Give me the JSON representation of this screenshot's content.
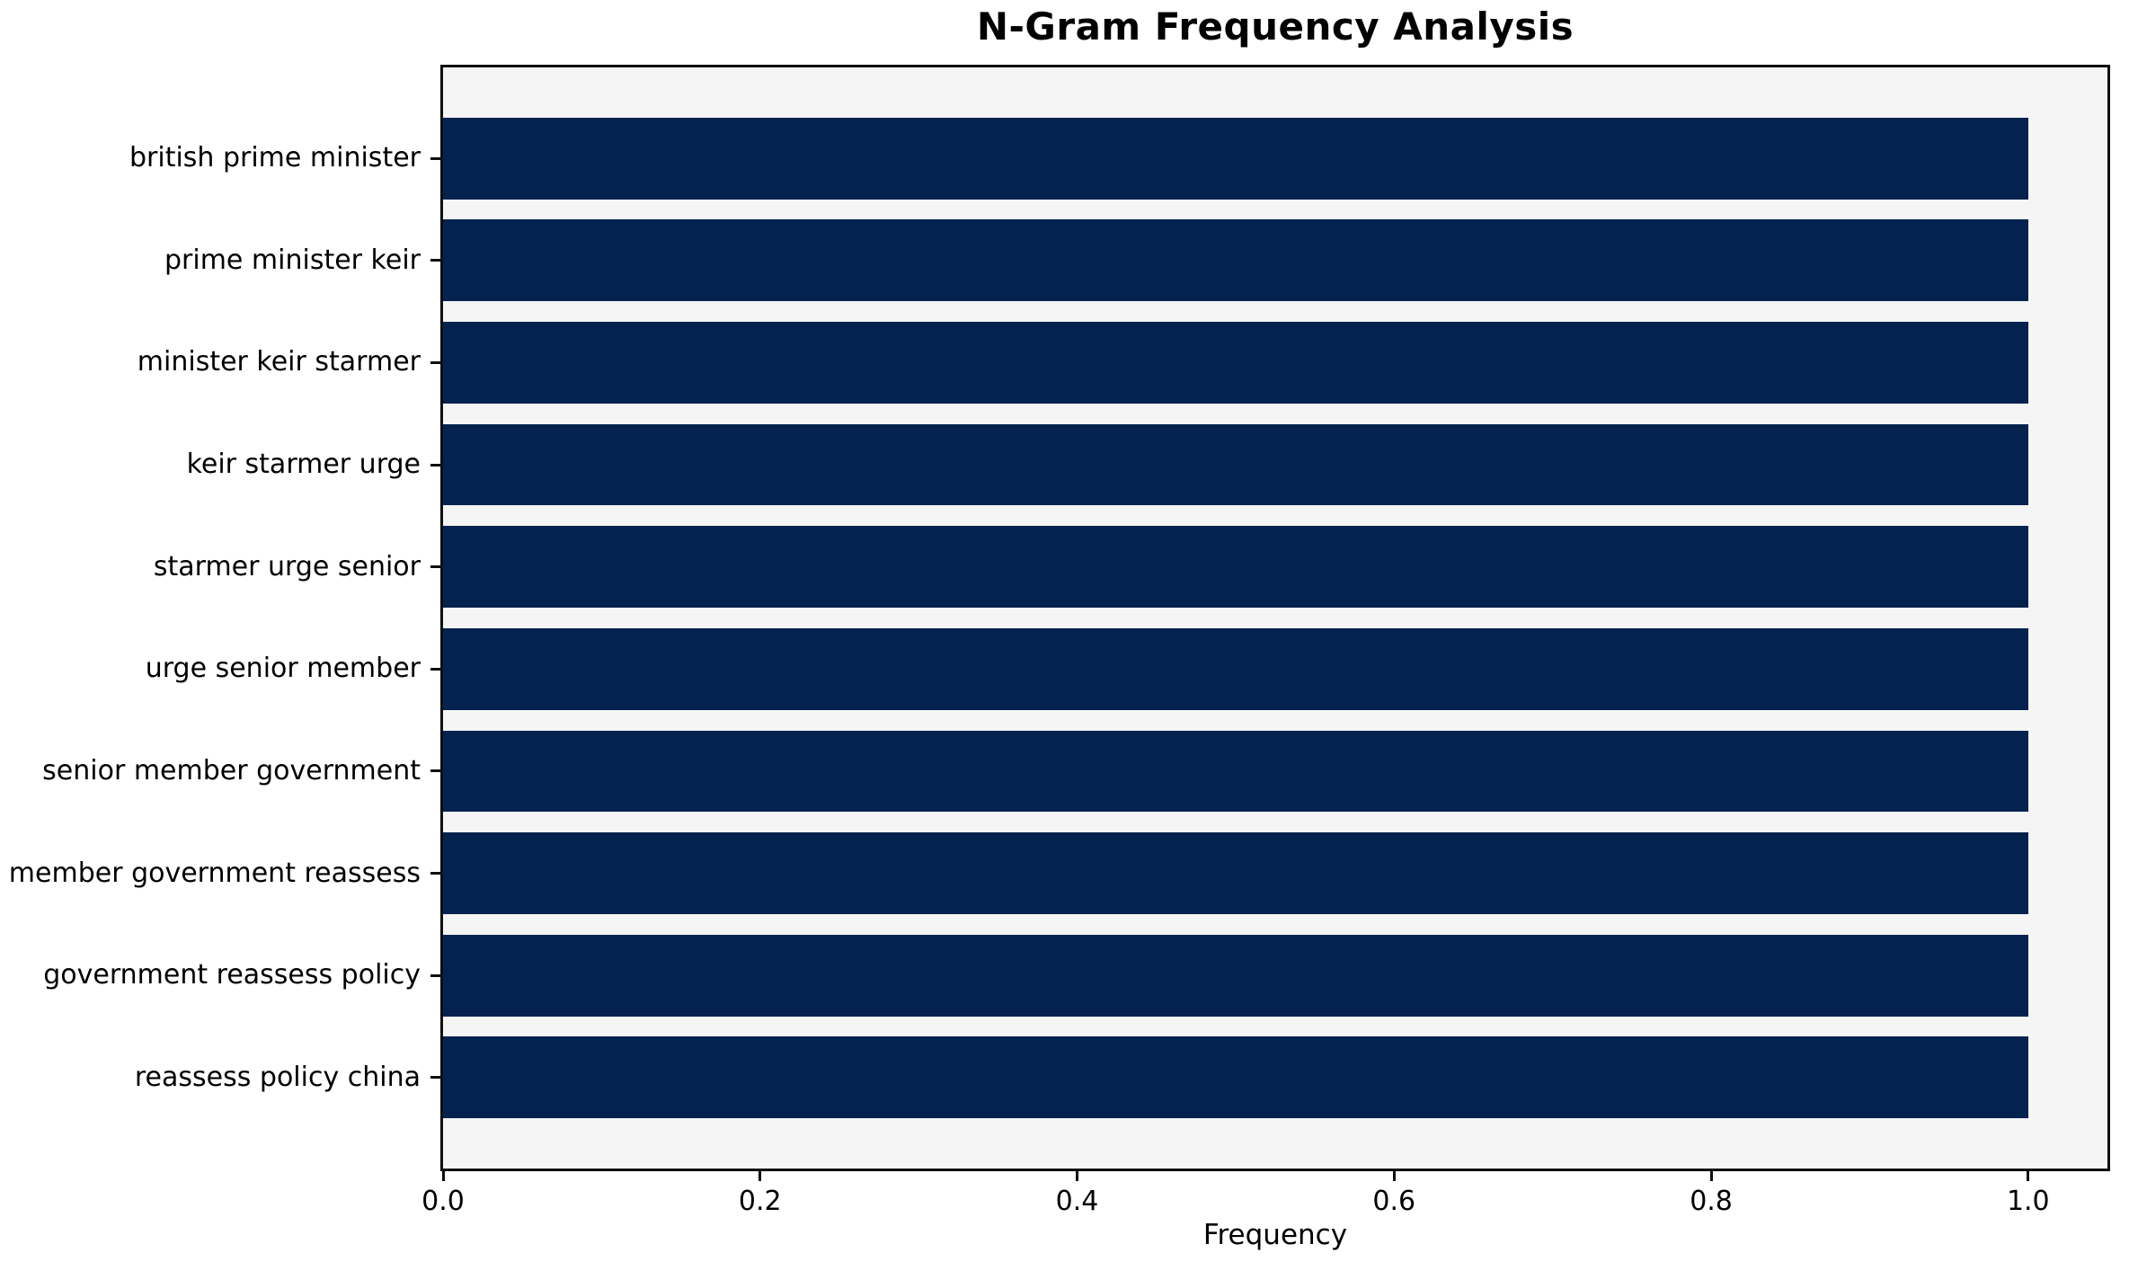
{
  "chart_data": {
    "type": "bar",
    "orientation": "horizontal",
    "title": "N-Gram Frequency Analysis",
    "xlabel": "Frequency",
    "ylabel": "",
    "categories": [
      "british prime minister",
      "prime minister keir",
      "minister keir starmer",
      "keir starmer urge",
      "starmer urge senior",
      "urge senior member",
      "senior member government",
      "member government reassess",
      "government reassess policy",
      "reassess policy china"
    ],
    "values": [
      1.0,
      1.0,
      1.0,
      1.0,
      1.0,
      1.0,
      1.0,
      1.0,
      1.0,
      1.0
    ],
    "x_ticks": [
      0.0,
      0.2,
      0.4,
      0.6,
      0.8,
      1.0
    ],
    "x_tick_labels": [
      "0.0",
      "0.2",
      "0.4",
      "0.6",
      "0.8",
      "1.0"
    ],
    "xlim": [
      0,
      1.05
    ],
    "grid": false,
    "legend": null,
    "colors": {
      "bar": "#03234e",
      "plot_background": "#f5f5f6",
      "figure_background": "#ffffff",
      "spine": "#0f0f0f",
      "text": "#000000"
    }
  }
}
